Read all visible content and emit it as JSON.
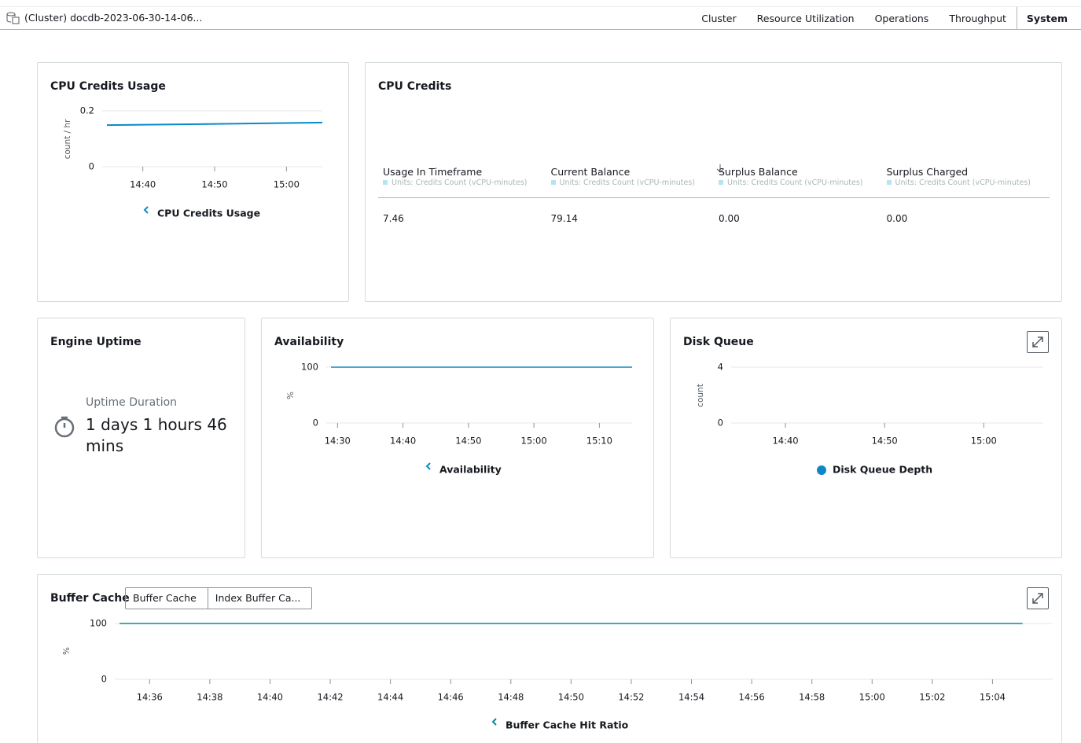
{
  "header": {
    "title": "(Cluster) docdb-2023-06-30-14-06...",
    "separator": "–",
    "tabs": [
      "Cluster",
      "Resource Utilization",
      "Operations",
      "Throughput",
      "System"
    ]
  },
  "cpu_credits_usage": {
    "type": "line",
    "title": "CPU Credits Usage",
    "y_label": "count / hr",
    "legend_symbol": "chevron",
    "xlim": [
      "14:35",
      "15:05"
    ],
    "xticks": [
      "14:40",
      "14:50",
      "15:00"
    ],
    "ylim": [
      0,
      0.2
    ],
    "yticks": [
      0,
      0.2
    ],
    "grid": true,
    "series": [
      {
        "name": "CPU Credits Usage",
        "color": "#0a8ac9",
        "x": [
          "14:35",
          "14:50",
          "15:05"
        ],
        "values": [
          0.149,
          0.153,
          0.158
        ]
      }
    ]
  },
  "cpu_credits": {
    "title": "CPU Credits",
    "columns": [
      {
        "name": "Usage In Timeframe",
        "unit": "Units: Credits Count (vCPU-minutes)"
      },
      {
        "name": "Current Balance",
        "unit": "Units: Credits Count (vCPU-minutes)"
      },
      {
        "name": "Surplus Balance",
        "unit": "Units: Credits Count (vCPU-minutes)"
      },
      {
        "name": "Surplus Charged",
        "unit": "Units: Credits Count (vCPU-minutes)"
      }
    ],
    "rows": [
      [
        "7.46",
        "79.14",
        "0.00",
        "0.00"
      ]
    ]
  },
  "engine_uptime": {
    "title": "Engine Uptime",
    "label": "Uptime Duration",
    "value": "1 days 1 hours 46 mins"
  },
  "availability": {
    "type": "line",
    "title": "Availability",
    "y_label": "%",
    "legend_symbol": "chevron",
    "xlim": [
      "14:29",
      "15:15"
    ],
    "xticks": [
      "14:30",
      "14:40",
      "14:50",
      "15:00",
      "15:10"
    ],
    "ylim": [
      0,
      100
    ],
    "yticks": [
      0,
      100
    ],
    "grid": true,
    "series": [
      {
        "name": "Availability",
        "color": "#0a8ac9",
        "x": [
          "14:29",
          "15:15"
        ],
        "values": [
          100,
          100
        ]
      }
    ]
  },
  "disk_queue": {
    "type": "line",
    "title": "Disk Queue",
    "y_label": "count",
    "legend_symbol": "dot",
    "xlim": [
      "14:35",
      "15:06"
    ],
    "xticks": [
      "14:40",
      "14:50",
      "15:00"
    ],
    "ylim": [
      0,
      4
    ],
    "yticks": [
      0,
      4
    ],
    "grid": true,
    "series": [
      {
        "name": "Disk Queue Depth",
        "color": "#0d88c6",
        "x": [],
        "values": []
      }
    ]
  },
  "buffer_cache": {
    "type": "line",
    "title": "Buffer Cache",
    "tabs": [
      "Buffer Cache",
      "Index Buffer Ca..."
    ],
    "y_label": "%",
    "legend_symbol": "chevron",
    "xlim": [
      "14:35",
      "15:06"
    ],
    "xticks": [
      "14:36",
      "14:38",
      "14:40",
      "14:42",
      "14:44",
      "14:46",
      "14:48",
      "14:50",
      "14:52",
      "14:54",
      "14:56",
      "14:58",
      "15:00",
      "15:02",
      "15:04"
    ],
    "ylim": [
      0,
      100
    ],
    "yticks": [
      0,
      100
    ],
    "grid": true,
    "series": [
      {
        "name": "Buffer Cache Hit Ratio",
        "color": "#0a8a9c",
        "x": [
          "14:35",
          "15:05"
        ],
        "values": [
          100,
          100
        ]
      }
    ]
  }
}
